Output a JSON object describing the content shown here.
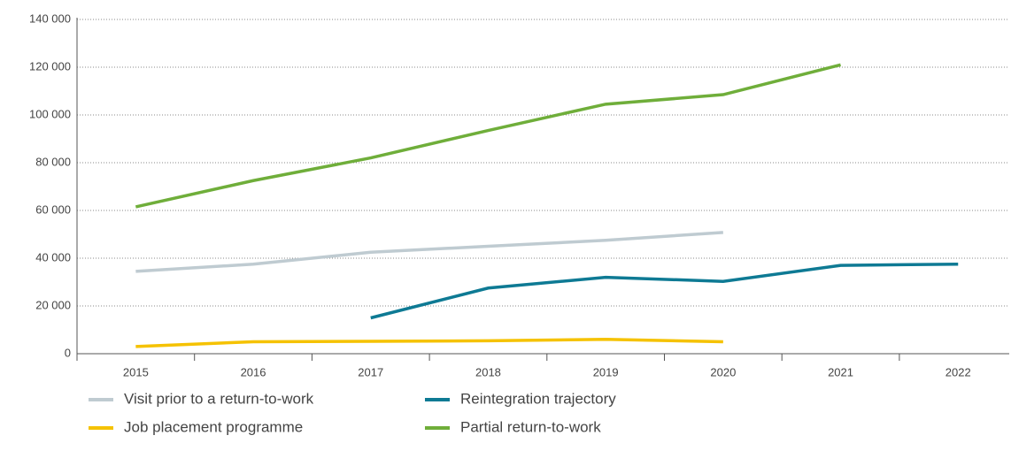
{
  "chart_data": {
    "type": "line",
    "categories": [
      "2015",
      "2016",
      "2017",
      "2018",
      "2019",
      "2020",
      "2021",
      "2022"
    ],
    "series": [
      {
        "name": "Visit prior to a return-to-work",
        "color": "#bfcbd1",
        "values": [
          34500,
          37500,
          42500,
          45000,
          47500,
          50800,
          null,
          null
        ]
      },
      {
        "name": "Reintegration trajectory",
        "color": "#0e7a94",
        "values": [
          null,
          null,
          15000,
          27500,
          32000,
          30300,
          37000,
          37500
        ]
      },
      {
        "name": "Job placement programme",
        "color": "#f5c200",
        "values": [
          3000,
          5000,
          5200,
          5400,
          6000,
          5000,
          null,
          null
        ]
      },
      {
        "name": "Partial return-to-work",
        "color": "#6fae3a",
        "values": [
          61500,
          72500,
          82000,
          93500,
          104500,
          108500,
          121000,
          null
        ]
      }
    ],
    "ylim": [
      0,
      140000
    ],
    "yticks": [
      0,
      {
        "value": 20000,
        "label": "20 000"
      },
      {
        "value": 40000,
        "label": "40 000"
      },
      {
        "value": 60000,
        "label": "60 000"
      },
      {
        "value": 80000,
        "label": "80 000"
      },
      {
        "value": 100000,
        "label": "100 000"
      },
      {
        "value": 120000,
        "label": "120 000"
      },
      {
        "value": 140000,
        "label": "140 000"
      }
    ],
    "grid": true,
    "legend": "bottom"
  }
}
